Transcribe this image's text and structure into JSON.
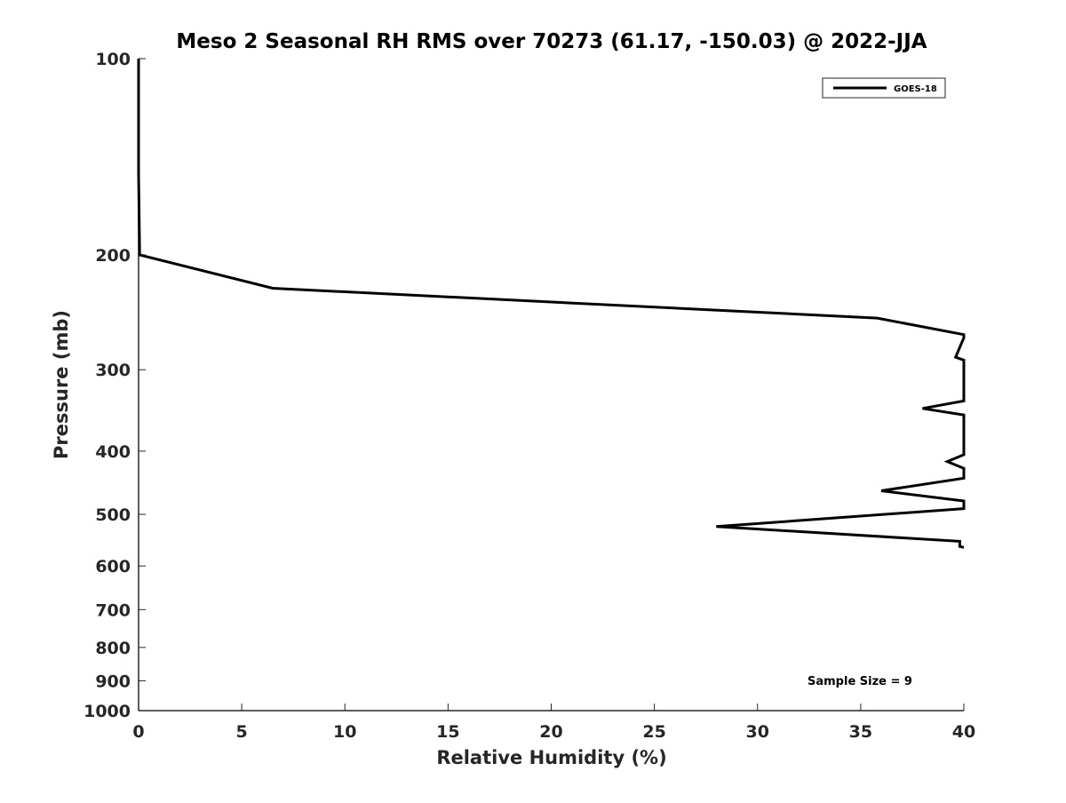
{
  "chart_data": {
    "type": "line",
    "title": "Meso 2 Seasonal RH RMS over 70273 (61.17, -150.03) @ 2022-JJA",
    "xlabel": "Relative Humidity (%)",
    "ylabel": "Pressure (mb)",
    "xlim": [
      0,
      40
    ],
    "ylim": [
      100,
      1000
    ],
    "y_scale": "log",
    "y_reversed": true,
    "x_ticks": [
      0,
      5,
      10,
      15,
      20,
      25,
      30,
      35,
      40
    ],
    "x_tick_labels": [
      "0",
      "5",
      "10",
      "15",
      "20",
      "25",
      "30",
      "35",
      "40"
    ],
    "y_ticks": [
      100,
      200,
      300,
      400,
      500,
      600,
      700,
      800,
      900,
      1000
    ],
    "y_tick_labels": [
      "100",
      "200",
      "300",
      "400",
      "500",
      "600",
      "700",
      "800",
      "900",
      "1000"
    ],
    "grid": false,
    "legend_position": "top-right",
    "series": [
      {
        "name": "GOES-18",
        "color": "#000000",
        "points": [
          [
            0,
            100
          ],
          [
            0,
            150
          ],
          [
            0.05,
            200
          ],
          [
            6.5,
            225
          ],
          [
            35.8,
            250
          ],
          [
            40,
            265
          ],
          [
            40,
            268
          ],
          [
            39.6,
            287
          ],
          [
            40,
            290
          ],
          [
            40,
            335
          ],
          [
            38,
            344
          ],
          [
            40,
            352
          ],
          [
            40,
            405
          ],
          [
            39.2,
            415
          ],
          [
            40,
            425
          ],
          [
            40,
            440
          ],
          [
            36,
            460
          ],
          [
            40,
            477
          ],
          [
            40,
            490
          ],
          [
            28,
            522
          ],
          [
            39.8,
            550
          ],
          [
            39.8,
            560
          ],
          [
            40,
            562
          ]
        ]
      }
    ],
    "annotation": "Sample Size = 9"
  }
}
